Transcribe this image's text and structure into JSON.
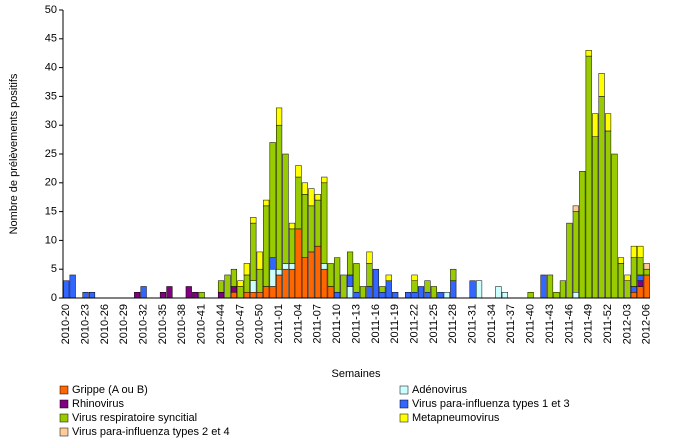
{
  "chart_data": {
    "type": "stacked_bar",
    "y_label": "Nombre de prélèvements positifs",
    "x_label": "Semaines",
    "categories": [
      "2010-20",
      null,
      null,
      "2010-23",
      null,
      null,
      "2010-26",
      null,
      null,
      "2010-29",
      null,
      null,
      "2010-32",
      null,
      null,
      "2010-35",
      null,
      null,
      "2010-38",
      null,
      null,
      "2010-41",
      null,
      null,
      "2010-44",
      null,
      null,
      "2010-47",
      null,
      null,
      "2010-50",
      null,
      null,
      "2011-01",
      null,
      null,
      "2011-04",
      null,
      null,
      "2011-07",
      null,
      null,
      "2011-10",
      null,
      null,
      "2011-13",
      null,
      null,
      "2011-16",
      null,
      null,
      "2011-19",
      null,
      null,
      "2011-22",
      null,
      null,
      "2011-25",
      null,
      null,
      "2011-28",
      null,
      null,
      "2011-31",
      null,
      null,
      "2011-34",
      null,
      null,
      "2011-37",
      null,
      null,
      "2011-40",
      null,
      null,
      "2011-43",
      null,
      null,
      "2011-46",
      null,
      null,
      "2011-49",
      null,
      null,
      "2011-52",
      null,
      null,
      "2012-03",
      null,
      null,
      "2012-06"
    ],
    "series": [
      {
        "name": "Grippe (A ou B)",
        "color": "#ff6600",
        "values": [
          0,
          0,
          0,
          0,
          0,
          0,
          0,
          0,
          0,
          0,
          0,
          0,
          0,
          0,
          0,
          0,
          0,
          0,
          0,
          0,
          0,
          0,
          0,
          0,
          0,
          0,
          1,
          0,
          1,
          1,
          1,
          2,
          2,
          4,
          5,
          5,
          12,
          7,
          8,
          9,
          5,
          2,
          0,
          0,
          0,
          0,
          0,
          0,
          0,
          0,
          0,
          0,
          0,
          0,
          0,
          0,
          0,
          0,
          0,
          0,
          0,
          0,
          0,
          0,
          0,
          0,
          0,
          0,
          0,
          0,
          0,
          0,
          0,
          0,
          0,
          0,
          0,
          0,
          0,
          0,
          0,
          0,
          0,
          0,
          0,
          0,
          0,
          0,
          1,
          2,
          4
        ]
      },
      {
        "name": "Adénovirus",
        "color": "#ccffff",
        "values": [
          0,
          0,
          0,
          0,
          0,
          0,
          0,
          0,
          0,
          0,
          0,
          0,
          0,
          0,
          0,
          0,
          0,
          0,
          0,
          0,
          0,
          0,
          0,
          0,
          0,
          0,
          0,
          0,
          0,
          2,
          0,
          0,
          3,
          1,
          1,
          1,
          0,
          0,
          0,
          0,
          1,
          0,
          0,
          0,
          2,
          0,
          0,
          0,
          0,
          0,
          0,
          0,
          0,
          0,
          0,
          0,
          0,
          0,
          0,
          1,
          0,
          0,
          0,
          0,
          3,
          0,
          0,
          2,
          1,
          0,
          0,
          0,
          0,
          0,
          0,
          0,
          0,
          0,
          0,
          1,
          0,
          0,
          0,
          0,
          0,
          0,
          0,
          0,
          0,
          0,
          0
        ]
      },
      {
        "name": "Rhinovirus",
        "color": "#800080",
        "values": [
          0,
          0,
          0,
          0,
          0,
          0,
          0,
          0,
          0,
          0,
          0,
          1,
          0,
          0,
          0,
          1,
          2,
          0,
          0,
          2,
          1,
          0,
          0,
          0,
          1,
          0,
          1,
          0,
          0,
          0,
          0,
          0,
          0,
          0,
          0,
          0,
          0,
          0,
          0,
          0,
          0,
          0,
          0,
          0,
          0,
          0,
          0,
          0,
          0,
          0,
          0,
          0,
          0,
          0,
          0,
          0,
          0,
          0,
          0,
          0,
          0,
          0,
          0,
          0,
          0,
          0,
          0,
          0,
          0,
          0,
          0,
          0,
          0,
          0,
          0,
          0,
          0,
          0,
          0,
          0,
          0,
          0,
          0,
          0,
          0,
          0,
          0,
          0,
          0,
          1,
          0
        ]
      },
      {
        "name": "Virus para-influenza types 1 et 3",
        "color": "#3366ff",
        "values": [
          3,
          4,
          0,
          1,
          1,
          0,
          0,
          0,
          0,
          0,
          0,
          0,
          2,
          0,
          0,
          0,
          0,
          0,
          0,
          0,
          0,
          0,
          0,
          0,
          0,
          0,
          0,
          0,
          0,
          0,
          0,
          0,
          2,
          0,
          0,
          0,
          0,
          0,
          0,
          0,
          0,
          0,
          1,
          0,
          2,
          1,
          0,
          2,
          5,
          1,
          3,
          1,
          0,
          1,
          1,
          2,
          1,
          0,
          1,
          0,
          3,
          0,
          0,
          3,
          0,
          0,
          0,
          0,
          0,
          0,
          0,
          0,
          0,
          0,
          4,
          0,
          0,
          0,
          0,
          0,
          0,
          0,
          0,
          0,
          0,
          0,
          0,
          0,
          1,
          1,
          0
        ]
      },
      {
        "name": "Virus respiratoire syncitial",
        "color": "#99cc00",
        "values": [
          0,
          0,
          0,
          0,
          0,
          0,
          0,
          0,
          0,
          0,
          0,
          0,
          0,
          0,
          0,
          0,
          0,
          0,
          0,
          0,
          0,
          1,
          0,
          0,
          2,
          4,
          3,
          2,
          3,
          10,
          4,
          14,
          20,
          25,
          19,
          6,
          9,
          11,
          8,
          8,
          14,
          4,
          6,
          4,
          4,
          5,
          2,
          4,
          0,
          1,
          0,
          0,
          0,
          0,
          2,
          0,
          2,
          2,
          0,
          0,
          2,
          0,
          0,
          0,
          0,
          0,
          0,
          0,
          0,
          0,
          0,
          0,
          1,
          0,
          0,
          4,
          1,
          3,
          13,
          14,
          22,
          42,
          28,
          35,
          29,
          25,
          6,
          3,
          5,
          3,
          1
        ]
      },
      {
        "name": "Metapneumovirus",
        "color": "#ffff00",
        "values": [
          0,
          0,
          0,
          0,
          0,
          0,
          0,
          0,
          0,
          0,
          0,
          0,
          0,
          0,
          0,
          0,
          0,
          0,
          0,
          0,
          0,
          0,
          0,
          0,
          0,
          0,
          0,
          1,
          2,
          1,
          3,
          1,
          0,
          3,
          0,
          1,
          2,
          2,
          3,
          1,
          1,
          0,
          0,
          0,
          0,
          0,
          0,
          2,
          0,
          0,
          1,
          0,
          0,
          0,
          1,
          0,
          0,
          0,
          0,
          0,
          0,
          0,
          0,
          0,
          0,
          0,
          0,
          0,
          0,
          0,
          0,
          0,
          0,
          0,
          0,
          0,
          0,
          0,
          0,
          0,
          0,
          1,
          4,
          4,
          3,
          0,
          1,
          1,
          2,
          2,
          0
        ]
      },
      {
        "name": "Virus para-influenza types 2 et 4",
        "color": "#ffcc99",
        "values": [
          0,
          0,
          0,
          0,
          0,
          0,
          0,
          0,
          0,
          0,
          0,
          0,
          0,
          0,
          0,
          0,
          0,
          0,
          0,
          0,
          0,
          0,
          0,
          0,
          0,
          0,
          0,
          0,
          0,
          0,
          0,
          0,
          0,
          0,
          0,
          0,
          0,
          0,
          0,
          0,
          0,
          0,
          0,
          0,
          0,
          0,
          0,
          0,
          0,
          0,
          0,
          0,
          0,
          0,
          0,
          0,
          0,
          0,
          0,
          0,
          0,
          0,
          0,
          0,
          0,
          0,
          0,
          0,
          0,
          0,
          0,
          0,
          0,
          0,
          0,
          0,
          0,
          0,
          0,
          1,
          0,
          0,
          0,
          0,
          0,
          0,
          0,
          0,
          0,
          0,
          1
        ]
      }
    ],
    "ylim": [
      0,
      50
    ],
    "yticks": [
      0,
      5,
      10,
      15,
      20,
      25,
      30,
      35,
      40,
      45,
      50
    ],
    "grid": false,
    "legend": "bottom"
  }
}
